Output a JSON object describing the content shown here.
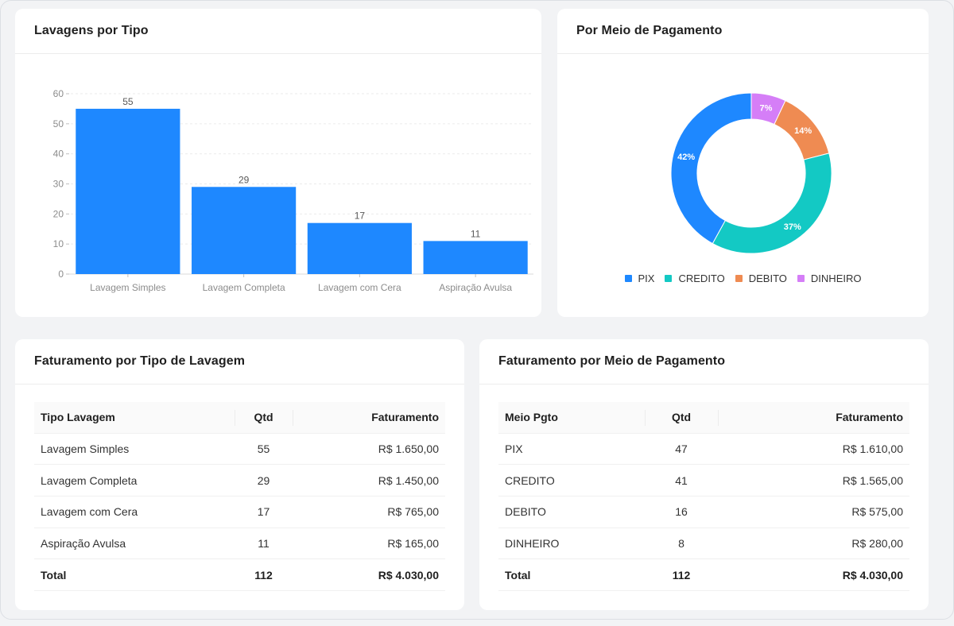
{
  "bar_card": {
    "title": "Lavagens por Tipo"
  },
  "pie_card": {
    "title": "Por Meio de Pagamento"
  },
  "chart_data": [
    {
      "type": "bar",
      "title": "Lavagens por Tipo",
      "categories": [
        "Lavagem Simples",
        "Lavagem Completa",
        "Lavagem com Cera",
        "Aspiração Avulsa"
      ],
      "values": [
        55,
        29,
        17,
        11
      ],
      "ylim": [
        0,
        60
      ],
      "yticks": [
        0,
        10,
        20,
        30,
        40,
        50,
        60
      ],
      "grid": true,
      "color": "#1e88ff"
    },
    {
      "type": "pie",
      "title": "Por Meio de Pagamento",
      "donut": true,
      "legend": "bottom",
      "labels": [
        "PIX",
        "CREDITO",
        "DEBITO",
        "DINHEIRO"
      ],
      "values": [
        42,
        37,
        14,
        7
      ],
      "value_labels": [
        "42%",
        "37%",
        "14%",
        "7%"
      ],
      "colors": [
        "#1e88ff",
        "#13c9c4",
        "#ef8b52",
        "#d57ef7"
      ]
    }
  ],
  "tipo_table": {
    "title": "Faturamento por Tipo de Lavagem",
    "headers": [
      "Tipo Lavagem",
      "Qtd",
      "Faturamento"
    ],
    "rows": [
      [
        "Lavagem Simples",
        "55",
        "R$ 1.650,00"
      ],
      [
        "Lavagem Completa",
        "29",
        "R$ 1.450,00"
      ],
      [
        "Lavagem com Cera",
        "17",
        "R$ 765,00"
      ],
      [
        "Aspiração Avulsa",
        "11",
        "R$ 165,00"
      ]
    ],
    "total": [
      "Total",
      "112",
      "R$ 4.030,00"
    ]
  },
  "pgto_table": {
    "title": "Faturamento por Meio de Pagamento",
    "headers": [
      "Meio Pgto",
      "Qtd",
      "Faturamento"
    ],
    "rows": [
      [
        "PIX",
        "47",
        "R$ 1.610,00"
      ],
      [
        "CREDITO",
        "41",
        "R$ 1.565,00"
      ],
      [
        "DEBITO",
        "16",
        "R$ 575,00"
      ],
      [
        "DINHEIRO",
        "8",
        "R$ 280,00"
      ]
    ],
    "total": [
      "Total",
      "112",
      "R$ 4.030,00"
    ]
  }
}
